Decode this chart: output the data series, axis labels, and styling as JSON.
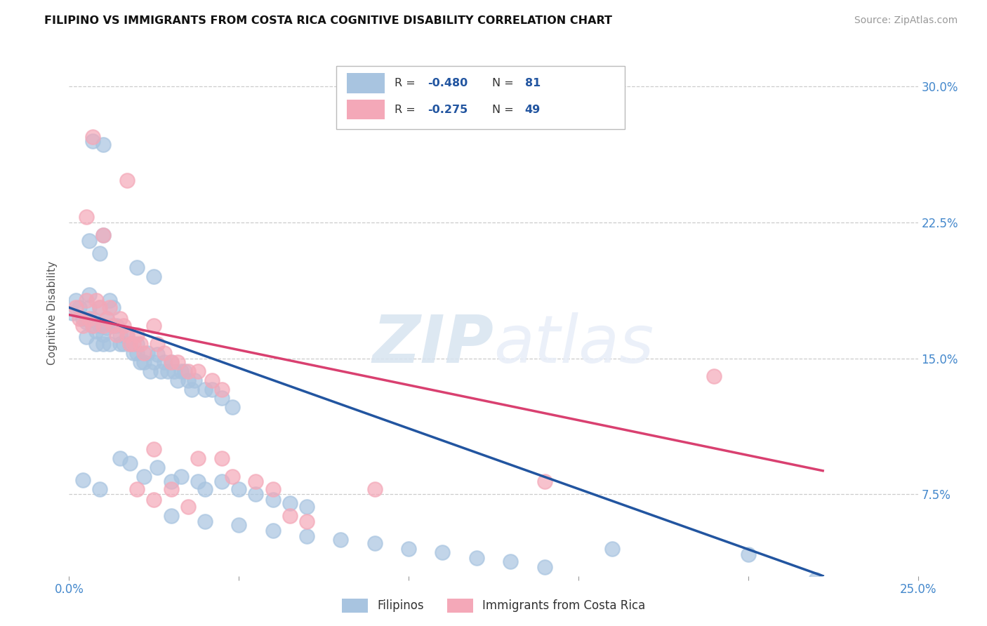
{
  "title": "FILIPINO VS IMMIGRANTS FROM COSTA RICA COGNITIVE DISABILITY CORRELATION CHART",
  "source": "Source: ZipAtlas.com",
  "ylabel": "Cognitive Disability",
  "yticks": [
    "7.5%",
    "15.0%",
    "22.5%",
    "30.0%"
  ],
  "ytick_vals": [
    0.075,
    0.15,
    0.225,
    0.3
  ],
  "xlim": [
    0.0,
    0.25
  ],
  "ylim": [
    0.03,
    0.32
  ],
  "legend_label_blue": "Filipinos",
  "legend_label_pink": "Immigrants from Costa Rica",
  "blue_color": "#a8c4e0",
  "pink_color": "#f4a8b8",
  "blue_line_color": "#2255a0",
  "pink_line_color": "#d94070",
  "watermark_zip": "ZIP",
  "watermark_atlas": "atlas",
  "blue_scatter": [
    [
      0.001,
      0.175
    ],
    [
      0.002,
      0.182
    ],
    [
      0.003,
      0.178
    ],
    [
      0.004,
      0.172
    ],
    [
      0.005,
      0.17
    ],
    [
      0.005,
      0.162
    ],
    [
      0.006,
      0.185
    ],
    [
      0.006,
      0.178
    ],
    [
      0.007,
      0.172
    ],
    [
      0.007,
      0.168
    ],
    [
      0.008,
      0.165
    ],
    [
      0.008,
      0.158
    ],
    [
      0.009,
      0.178
    ],
    [
      0.009,
      0.168
    ],
    [
      0.01,
      0.163
    ],
    [
      0.01,
      0.158
    ],
    [
      0.011,
      0.172
    ],
    [
      0.011,
      0.167
    ],
    [
      0.012,
      0.182
    ],
    [
      0.012,
      0.158
    ],
    [
      0.013,
      0.178
    ],
    [
      0.013,
      0.168
    ],
    [
      0.014,
      0.168
    ],
    [
      0.015,
      0.163
    ],
    [
      0.015,
      0.158
    ],
    [
      0.016,
      0.158
    ],
    [
      0.017,
      0.162
    ],
    [
      0.018,
      0.158
    ],
    [
      0.019,
      0.153
    ],
    [
      0.02,
      0.158
    ],
    [
      0.02,
      0.153
    ],
    [
      0.021,
      0.148
    ],
    [
      0.022,
      0.148
    ],
    [
      0.023,
      0.153
    ],
    [
      0.024,
      0.143
    ],
    [
      0.025,
      0.148
    ],
    [
      0.026,
      0.152
    ],
    [
      0.027,
      0.143
    ],
    [
      0.028,
      0.148
    ],
    [
      0.029,
      0.143
    ],
    [
      0.03,
      0.148
    ],
    [
      0.031,
      0.143
    ],
    [
      0.032,
      0.138
    ],
    [
      0.033,
      0.143
    ],
    [
      0.034,
      0.143
    ],
    [
      0.035,
      0.138
    ],
    [
      0.036,
      0.133
    ],
    [
      0.037,
      0.138
    ],
    [
      0.04,
      0.133
    ],
    [
      0.042,
      0.133
    ],
    [
      0.045,
      0.128
    ],
    [
      0.048,
      0.123
    ],
    [
      0.007,
      0.27
    ],
    [
      0.01,
      0.268
    ],
    [
      0.006,
      0.215
    ],
    [
      0.009,
      0.208
    ],
    [
      0.01,
      0.218
    ],
    [
      0.02,
      0.2
    ],
    [
      0.025,
      0.195
    ],
    [
      0.004,
      0.083
    ],
    [
      0.009,
      0.078
    ],
    [
      0.015,
      0.095
    ],
    [
      0.018,
      0.092
    ],
    [
      0.022,
      0.085
    ],
    [
      0.026,
      0.09
    ],
    [
      0.03,
      0.082
    ],
    [
      0.033,
      0.085
    ],
    [
      0.038,
      0.082
    ],
    [
      0.04,
      0.078
    ],
    [
      0.045,
      0.082
    ],
    [
      0.05,
      0.078
    ],
    [
      0.055,
      0.075
    ],
    [
      0.06,
      0.072
    ],
    [
      0.065,
      0.07
    ],
    [
      0.07,
      0.068
    ],
    [
      0.03,
      0.063
    ],
    [
      0.04,
      0.06
    ],
    [
      0.05,
      0.058
    ],
    [
      0.06,
      0.055
    ],
    [
      0.07,
      0.052
    ],
    [
      0.08,
      0.05
    ],
    [
      0.09,
      0.048
    ],
    [
      0.1,
      0.045
    ],
    [
      0.11,
      0.043
    ],
    [
      0.12,
      0.04
    ],
    [
      0.13,
      0.038
    ],
    [
      0.14,
      0.035
    ],
    [
      0.16,
      0.045
    ],
    [
      0.2,
      0.042
    ],
    [
      0.22,
      0.028
    ]
  ],
  "pink_scatter": [
    [
      0.002,
      0.178
    ],
    [
      0.003,
      0.172
    ],
    [
      0.004,
      0.168
    ],
    [
      0.005,
      0.182
    ],
    [
      0.006,
      0.172
    ],
    [
      0.007,
      0.168
    ],
    [
      0.008,
      0.182
    ],
    [
      0.009,
      0.178
    ],
    [
      0.01,
      0.168
    ],
    [
      0.011,
      0.172
    ],
    [
      0.012,
      0.178
    ],
    [
      0.013,
      0.168
    ],
    [
      0.014,
      0.163
    ],
    [
      0.015,
      0.172
    ],
    [
      0.016,
      0.168
    ],
    [
      0.017,
      0.163
    ],
    [
      0.018,
      0.158
    ],
    [
      0.019,
      0.158
    ],
    [
      0.02,
      0.163
    ],
    [
      0.021,
      0.158
    ],
    [
      0.022,
      0.153
    ],
    [
      0.025,
      0.168
    ],
    [
      0.026,
      0.158
    ],
    [
      0.028,
      0.153
    ],
    [
      0.03,
      0.148
    ],
    [
      0.032,
      0.148
    ],
    [
      0.035,
      0.143
    ],
    [
      0.038,
      0.143
    ],
    [
      0.042,
      0.138
    ],
    [
      0.045,
      0.133
    ],
    [
      0.007,
      0.272
    ],
    [
      0.017,
      0.248
    ],
    [
      0.005,
      0.228
    ],
    [
      0.01,
      0.218
    ],
    [
      0.025,
      0.1
    ],
    [
      0.038,
      0.095
    ],
    [
      0.045,
      0.095
    ],
    [
      0.048,
      0.085
    ],
    [
      0.055,
      0.082
    ],
    [
      0.06,
      0.078
    ],
    [
      0.02,
      0.078
    ],
    [
      0.025,
      0.072
    ],
    [
      0.03,
      0.078
    ],
    [
      0.035,
      0.068
    ],
    [
      0.065,
      0.063
    ],
    [
      0.07,
      0.06
    ],
    [
      0.09,
      0.078
    ],
    [
      0.14,
      0.082
    ],
    [
      0.19,
      0.14
    ]
  ],
  "blue_trend_x": [
    0.0,
    0.222
  ],
  "blue_trend_y": [
    0.178,
    0.03
  ],
  "pink_trend_x": [
    0.0,
    0.222
  ],
  "pink_trend_y": [
    0.174,
    0.088
  ]
}
